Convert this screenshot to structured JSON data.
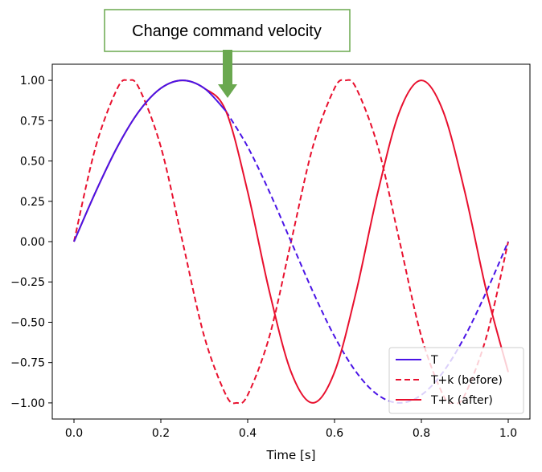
{
  "chart_data": {
    "type": "line",
    "title": "",
    "xlabel": "Time [s]",
    "ylabel": "",
    "xlim": [
      -0.05,
      1.05
    ],
    "ylim": [
      -1.1,
      1.1
    ],
    "xticks": [
      0.0,
      0.2,
      0.4,
      0.6,
      0.8,
      1.0
    ],
    "xtick_labels": [
      "0.0",
      "0.2",
      "0.4",
      "0.6",
      "0.8",
      "1.0"
    ],
    "yticks": [
      1.0,
      0.75,
      0.5,
      0.25,
      0.0,
      -0.25,
      -0.5,
      -0.75,
      -1.0
    ],
    "ytick_labels": [
      "1.00",
      "0.75",
      "0.50",
      "0.25",
      "0.00",
      "−0.25",
      "−0.50",
      "−0.75",
      "−1.00"
    ],
    "grid": false,
    "legend_position": "lower-right",
    "series": [
      {
        "name": "T",
        "color": "#4a14e6",
        "solid_range": [
          0.0,
          0.35
        ],
        "dashed_range": [
          0.35,
          1.0
        ],
        "formula": "sin(2*pi*t)",
        "x": [
          0.0,
          0.05,
          0.1,
          0.15,
          0.2,
          0.25,
          0.3,
          0.35,
          0.4,
          0.45,
          0.5,
          0.55,
          0.6,
          0.65,
          0.7,
          0.75,
          0.8,
          0.85,
          0.9,
          0.95,
          1.0
        ],
        "values": [
          0.0,
          0.309,
          0.588,
          0.809,
          0.951,
          1.0,
          0.951,
          0.809,
          0.588,
          0.309,
          0.0,
          -0.309,
          -0.588,
          -0.809,
          -0.951,
          -1.0,
          -0.951,
          -0.809,
          -0.588,
          -0.309,
          0.0
        ]
      },
      {
        "name": "T+k (before)",
        "color": "#e8102e",
        "dashed": true,
        "formula": "sin(4*pi*t)",
        "x": [
          0.0,
          0.05,
          0.1,
          0.125,
          0.15,
          0.2,
          0.25,
          0.3,
          0.35,
          0.375,
          0.4,
          0.45,
          0.5,
          0.55,
          0.6,
          0.625,
          0.65,
          0.7,
          0.75,
          0.8,
          0.85,
          0.875,
          0.9,
          0.95,
          1.0
        ],
        "values": [
          0.0,
          0.588,
          0.951,
          1.0,
          0.951,
          0.588,
          0.0,
          -0.588,
          -0.951,
          -1.0,
          -0.951,
          -0.588,
          0.0,
          0.588,
          0.951,
          1.0,
          0.951,
          0.588,
          0.0,
          -0.588,
          -0.951,
          -1.0,
          -0.951,
          -0.588,
          0.0
        ]
      },
      {
        "name": "T+k (after)",
        "color": "#e8102e",
        "dashed": false,
        "formula": "sin(2*pi*t) for t<=0.35; sin(2*pi*0.35 + 4*pi*(t-0.35)) after",
        "x": [
          0.0,
          0.05,
          0.1,
          0.15,
          0.2,
          0.25,
          0.3,
          0.35,
          0.4,
          0.45,
          0.5,
          0.55,
          0.6,
          0.65,
          0.7,
          0.75,
          0.8,
          0.85,
          0.9,
          0.95,
          1.0
        ],
        "values": [
          0.0,
          0.309,
          0.588,
          0.809,
          0.951,
          1.0,
          0.951,
          0.809,
          0.309,
          -0.309,
          -0.809,
          -1.0,
          -0.809,
          -0.309,
          0.309,
          0.809,
          1.0,
          0.809,
          0.309,
          -0.309,
          -0.809
        ]
      }
    ],
    "annotations": [
      {
        "text": "Change command velocity",
        "points_to_x": 0.35,
        "arrow_color": "#6aa84f",
        "box_border_color": "#6aa84f"
      }
    ]
  }
}
